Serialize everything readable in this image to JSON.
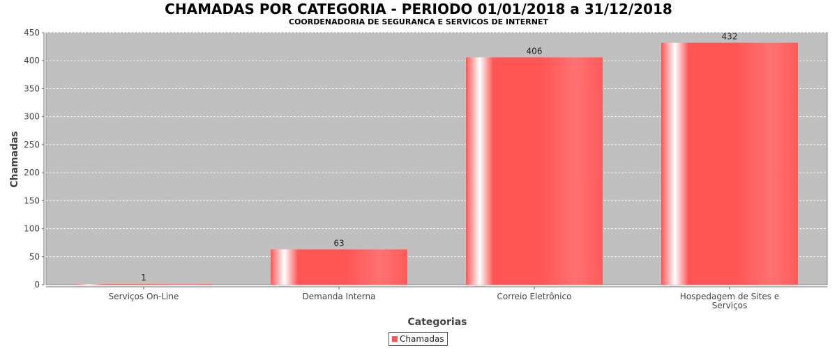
{
  "title": "CHAMADAS POR CATEGORIA - PERIODO 01/01/2018 a 31/12/2018",
  "subtitle": "COORDENADORIA DE SEGURANCA E SERVICOS DE INTERNET",
  "chart_data": {
    "type": "bar",
    "categories": [
      [
        "Serviços On-Line"
      ],
      [
        "Demanda Interna"
      ],
      [
        "Correio Eletrônico"
      ],
      [
        "Hospedagem de Sites e",
        "Serviços"
      ]
    ],
    "series": [
      {
        "name": "Chamadas",
        "values": [
          1,
          63,
          406,
          432
        ]
      }
    ],
    "data_labels": [
      "1",
      "63",
      "406",
      "432"
    ],
    "xlabel": "Categorias",
    "ylabel": "Chamadas",
    "ylim": [
      0,
      450
    ],
    "yticks": [
      0,
      50,
      100,
      150,
      200,
      250,
      300,
      350,
      400,
      450
    ],
    "grid": true,
    "legend_position": "bottom",
    "colors": {
      "plot_background": "#c0c0c0",
      "bar": "#ff5555",
      "bar_highlight": "#ffffff",
      "bar_light": "#ff7070",
      "gridline": "#ffffff"
    }
  }
}
